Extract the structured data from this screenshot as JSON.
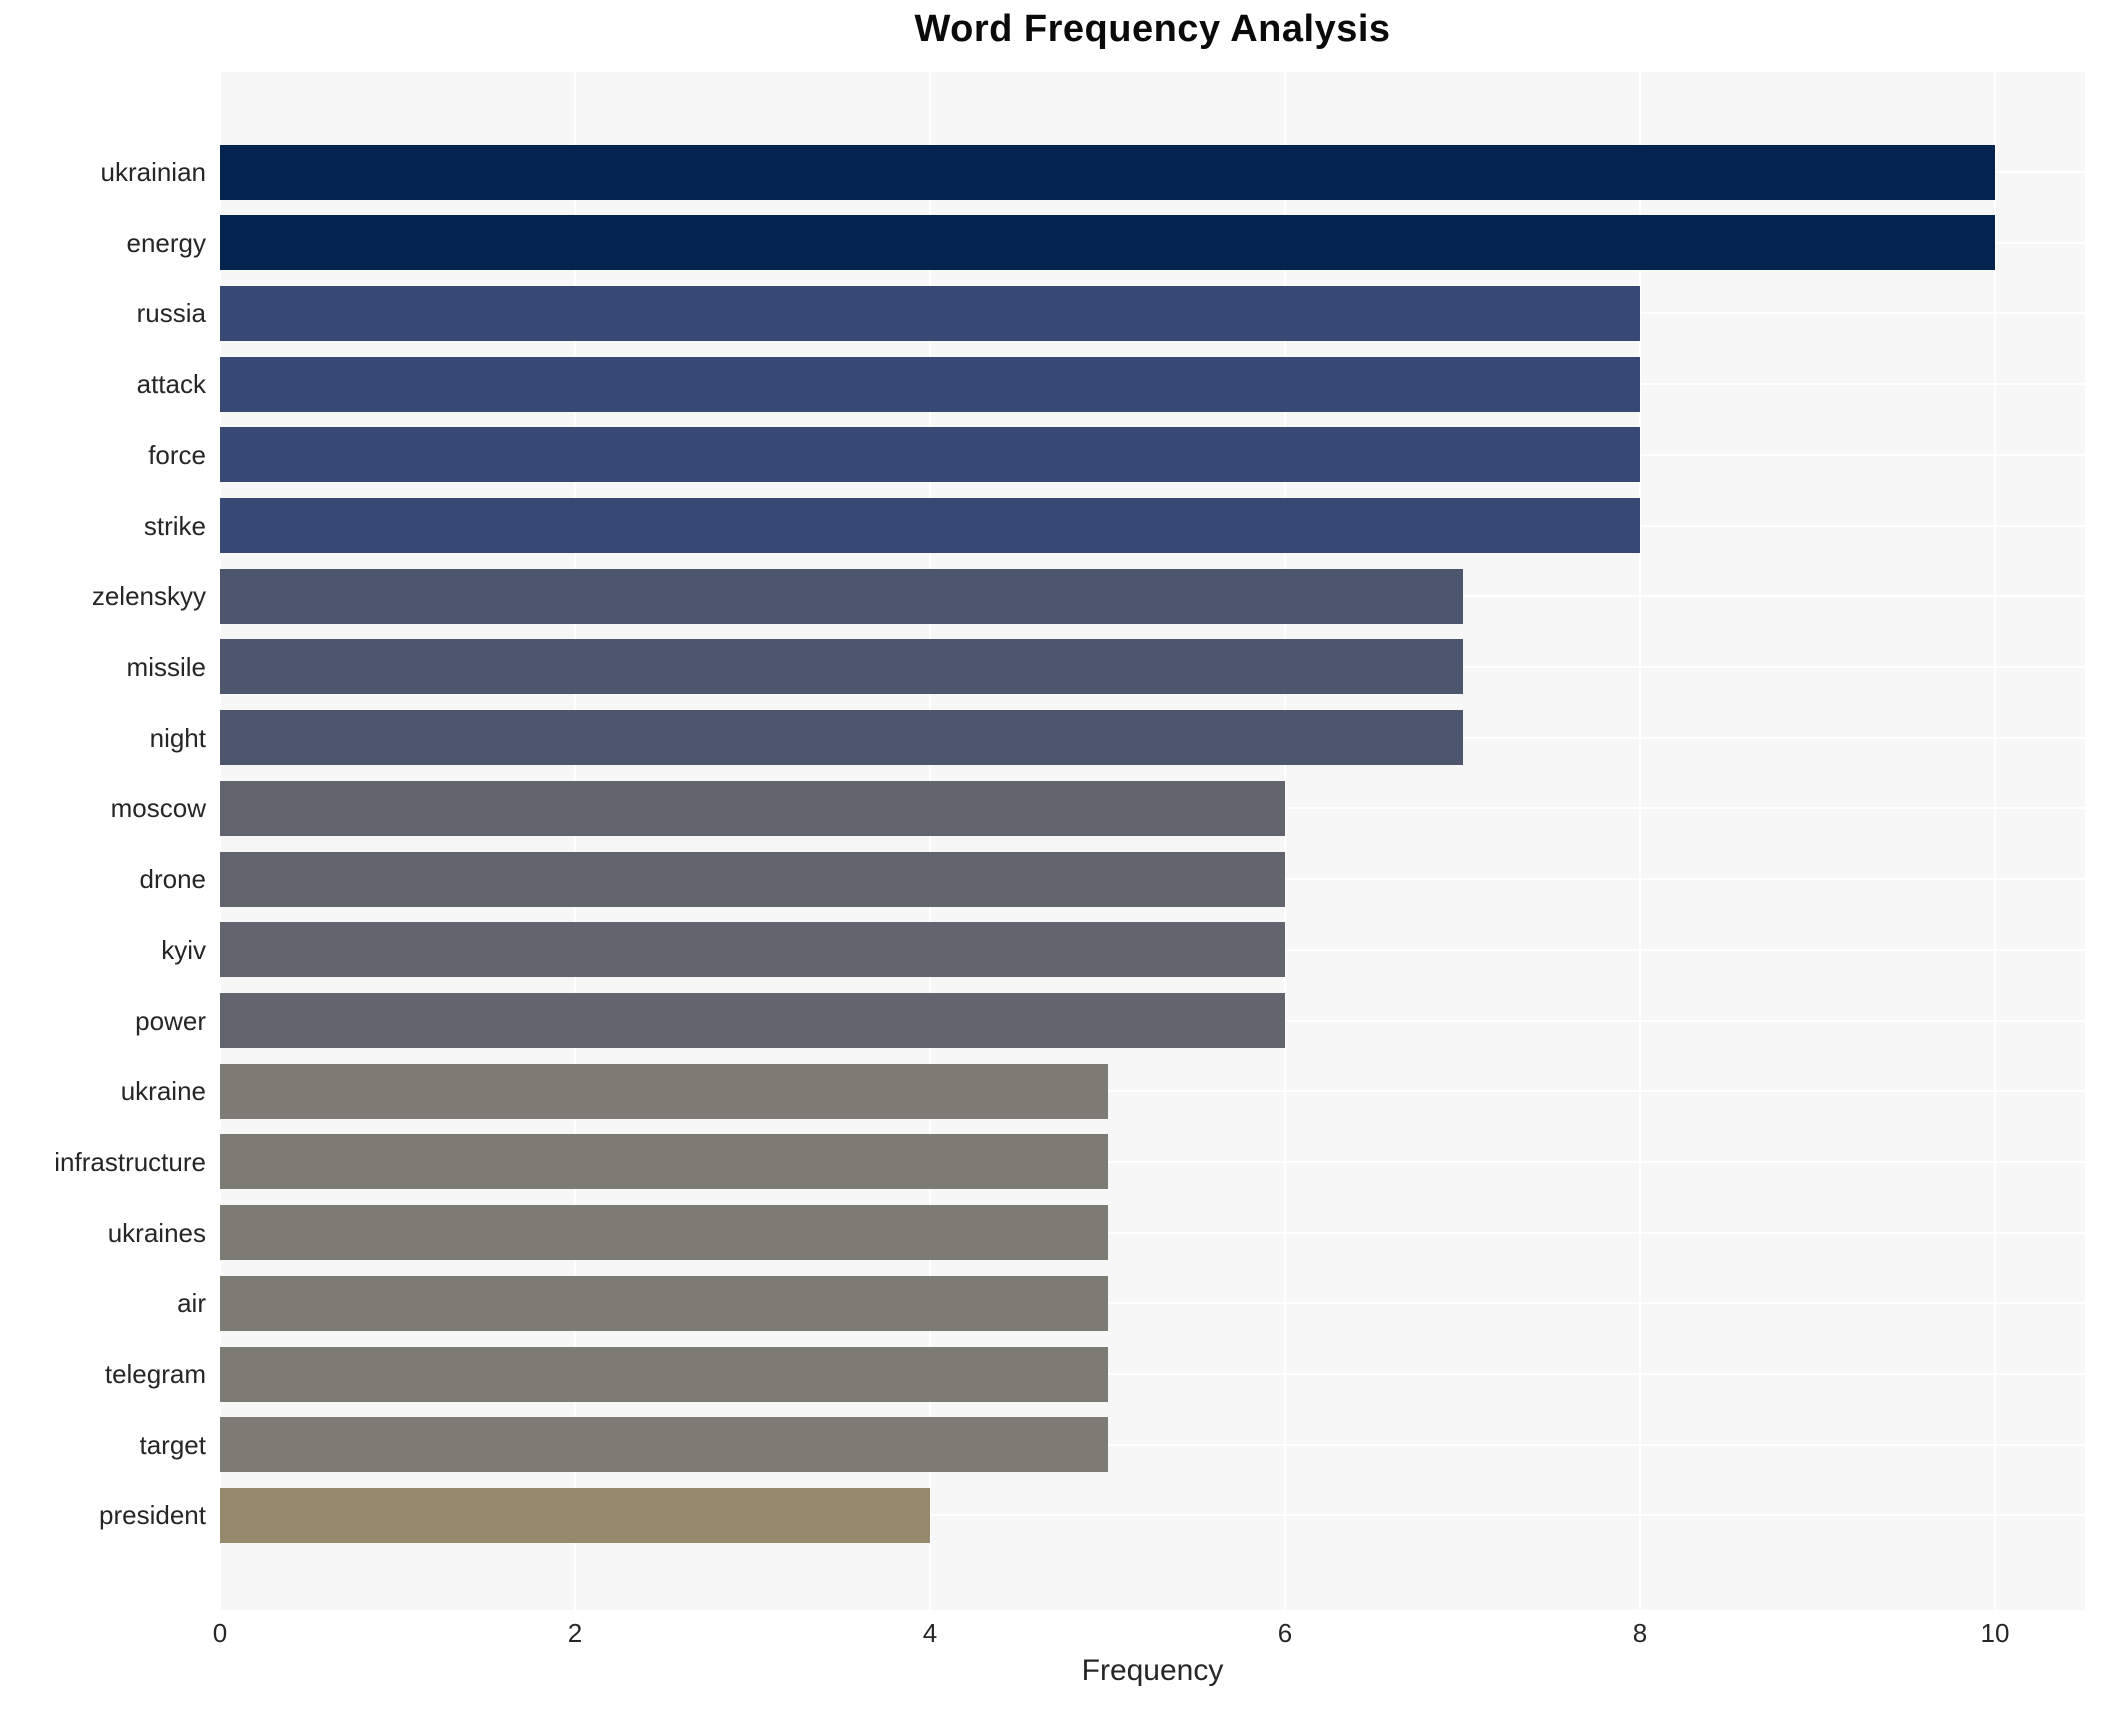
{
  "title": "Word Frequency Analysis",
  "chart_data": {
    "type": "bar",
    "orientation": "horizontal",
    "title": "Word Frequency Analysis",
    "xlabel": "Frequency",
    "ylabel": "",
    "xlim": [
      0,
      10
    ],
    "xticks": [
      0,
      2,
      4,
      6,
      8,
      10
    ],
    "grid": true,
    "legend": false,
    "plot_bg_color": "#f7f7f8",
    "grid_color": "#ffffff",
    "text_color": "#262626",
    "categories": [
      "ukrainian",
      "energy",
      "russia",
      "attack",
      "force",
      "strike",
      "zelenskyy",
      "missile",
      "night",
      "moscow",
      "drone",
      "kyiv",
      "power",
      "ukraine",
      "infrastructure",
      "ukraines",
      "air",
      "telegram",
      "target",
      "president"
    ],
    "values": [
      10,
      10,
      8,
      8,
      8,
      8,
      7,
      7,
      7,
      6,
      6,
      6,
      6,
      5,
      5,
      5,
      5,
      5,
      5,
      4
    ],
    "bar_colors": [
      "#04234e",
      "#04234e",
      "#364873",
      "#364873",
      "#364873",
      "#364873",
      "#4e566e",
      "#4e566e",
      "#4e566e",
      "#62646e",
      "#62646e",
      "#62646e",
      "#62646e",
      "#7d7c74",
      "#7d7c74",
      "#7d7c74",
      "#7d7c74",
      "#7d7c74",
      "#7d7c74",
      "#96896b"
    ]
  }
}
